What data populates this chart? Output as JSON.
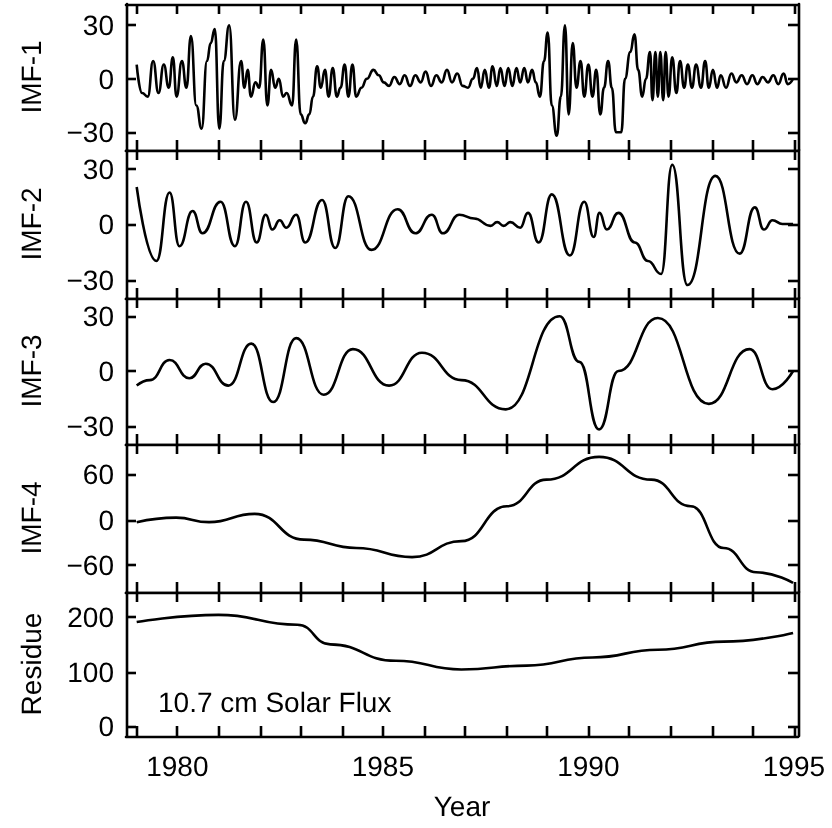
{
  "chart_data": [
    {
      "type": "line",
      "ylabel": "IMF-1",
      "xlim": [
        1978.75,
        1995.1
      ],
      "ylim": [
        -40,
        42
      ],
      "yticks": [
        -30,
        0,
        30
      ],
      "tick_labels": "y",
      "grid": false,
      "xticks": [
        {
          "value": 1979,
          "label": null
        },
        {
          "value": 1980,
          "label": null
        },
        {
          "value": 1981,
          "label": null
        },
        {
          "value": 1982,
          "label": null
        },
        {
          "value": 1983,
          "label": null
        },
        {
          "value": 1984,
          "label": null
        },
        {
          "value": 1985,
          "label": null
        },
        {
          "value": 1986,
          "label": null
        },
        {
          "value": 1987,
          "label": null
        },
        {
          "value": 1988,
          "label": null
        },
        {
          "value": 1989,
          "label": null
        },
        {
          "value": 1990,
          "label": null
        },
        {
          "value": 1991,
          "label": null
        },
        {
          "value": 1992,
          "label": null
        },
        {
          "value": 1993,
          "label": null
        },
        {
          "value": 1994,
          "label": null
        },
        {
          "value": 1995,
          "label": null
        }
      ],
      "series": [
        {
          "color": "#000000",
          "x": [
            1979.01,
            1979.14,
            1979.28,
            1979.41,
            1979.54,
            1979.67,
            1979.79,
            1979.89,
            1979.98,
            1980.11,
            1980.22,
            1980.33,
            1980.46,
            1980.59,
            1980.72,
            1980.81,
            1980.91,
            1981.02,
            1981.13,
            1981.26,
            1981.4,
            1981.55,
            1981.63,
            1981.71,
            1981.79,
            1981.9,
            1981.99,
            1982.09,
            1982.19,
            1982.28,
            1982.38,
            1982.47,
            1982.57,
            1982.66,
            1982.79,
            1982.89,
            1983.0,
            1983.11,
            1983.21,
            1983.3,
            1983.4,
            1983.49,
            1983.59,
            1983.68,
            1983.78,
            1983.88,
            1983.97,
            1984.07,
            1984.16,
            1984.26,
            1984.35,
            1984.48,
            1984.61,
            1984.77,
            1984.9,
            1985.02,
            1985.15,
            1985.28,
            1985.41,
            1985.53,
            1985.66,
            1985.79,
            1985.92,
            1986.04,
            1986.17,
            1986.3,
            1986.43,
            1986.56,
            1986.68,
            1986.81,
            1986.94,
            1987.07,
            1987.19,
            1987.29,
            1987.38,
            1987.48,
            1987.58,
            1987.67,
            1987.77,
            1987.86,
            1987.96,
            1988.05,
            1988.15,
            1988.25,
            1988.34,
            1988.44,
            1988.53,
            1988.63,
            1988.72,
            1988.82,
            1988.92,
            1989.01,
            1989.11,
            1989.23,
            1989.33,
            1989.43,
            1989.52,
            1989.62,
            1989.71,
            1989.81,
            1989.9,
            1990.0,
            1990.1,
            1990.19,
            1990.29,
            1990.38,
            1990.48,
            1990.57,
            1990.67,
            1990.8,
            1990.89,
            1991.02,
            1991.12,
            1991.21,
            1991.31,
            1991.4,
            1991.5,
            1991.56,
            1991.63,
            1991.69,
            1991.75,
            1991.82,
            1991.88,
            1991.95,
            1992.04,
            1992.14,
            1992.23,
            1992.33,
            1992.42,
            1992.52,
            1992.62,
            1992.74,
            1992.84,
            1992.93,
            1993.03,
            1993.13,
            1993.22,
            1993.35,
            1993.48,
            1993.6,
            1993.73,
            1993.86,
            1993.99,
            1994.11,
            1994.24,
            1994.37,
            1994.5,
            1994.62,
            1994.75,
            1994.85,
            1994.98
          ],
          "values": [
            8,
            -8,
            -10,
            10,
            -8,
            8,
            -5,
            12,
            -10,
            10,
            -5,
            24,
            -15,
            -28,
            10,
            20,
            28,
            -28,
            10,
            30,
            -23,
            10,
            -5,
            5,
            -10,
            -2,
            -5,
            22,
            -15,
            5,
            -5,
            0,
            -10,
            -8,
            -15,
            22,
            -20,
            -25,
            -20,
            -10,
            7,
            -5,
            5,
            -10,
            6,
            -10,
            -5,
            8,
            -10,
            8,
            -10,
            -5,
            0,
            5,
            2,
            -2,
            -4,
            1,
            -3,
            2,
            -4,
            2,
            -2,
            4,
            -4,
            2,
            -2,
            5,
            -2,
            3,
            -4,
            -5,
            0,
            6,
            -5,
            5,
            -5,
            7,
            -4,
            6,
            -4,
            6,
            -4,
            6,
            -2,
            6,
            -2,
            5,
            -2,
            -10,
            10,
            26,
            -15,
            -32,
            -10,
            30,
            -20,
            20,
            -5,
            10,
            -10,
            8,
            -10,
            5,
            -20,
            -5,
            10,
            -5,
            -30,
            -30,
            0,
            15,
            25,
            5,
            -10,
            0,
            15,
            -12,
            15,
            -10,
            15,
            -12,
            15,
            -10,
            12,
            -8,
            10,
            -5,
            8,
            -5,
            8,
            -5,
            10,
            -5,
            5,
            -5,
            2,
            -5,
            3,
            -2,
            2,
            -3,
            2,
            -3,
            1,
            -2,
            2,
            -3,
            3,
            -3,
            0
          ]
        }
      ]
    },
    {
      "type": "line",
      "ylabel": "IMF-2",
      "xlim": [
        1978.75,
        1995.1
      ],
      "ylim": [
        -40,
        40
      ],
      "yticks": [
        -30,
        0,
        30
      ],
      "tick_labels": "y",
      "grid": false,
      "xticks": [
        {
          "value": 1979,
          "label": null
        },
        {
          "value": 1980,
          "label": null
        },
        {
          "value": 1981,
          "label": null
        },
        {
          "value": 1982,
          "label": null
        },
        {
          "value": 1983,
          "label": null
        },
        {
          "value": 1984,
          "label": null
        },
        {
          "value": 1985,
          "label": null
        },
        {
          "value": 1986,
          "label": null
        },
        {
          "value": 1987,
          "label": null
        },
        {
          "value": 1988,
          "label": null
        },
        {
          "value": 1989,
          "label": null
        },
        {
          "value": 1990,
          "label": null
        },
        {
          "value": 1991,
          "label": null
        },
        {
          "value": 1992,
          "label": null
        },
        {
          "value": 1993,
          "label": null
        },
        {
          "value": 1994,
          "label": null
        },
        {
          "value": 1995,
          "label": null
        }
      ],
      "series": [
        {
          "color": "#000000",
          "x": [
            1979.01,
            1979.49,
            1979.81,
            1980.05,
            1980.37,
            1980.61,
            1981.05,
            1981.4,
            1981.67,
            1981.93,
            1982.15,
            1982.31,
            1982.49,
            1982.65,
            1982.89,
            1983.11,
            1983.52,
            1983.84,
            1984.16,
            1984.72,
            1985.36,
            1985.79,
            1986.19,
            1986.46,
            1986.86,
            1987.22,
            1987.62,
            1987.78,
            1987.94,
            1988.1,
            1988.34,
            1988.53,
            1988.79,
            1989.11,
            1989.55,
            1989.9,
            1990.13,
            1990.27,
            1990.45,
            1990.73,
            1991.13,
            1991.45,
            1991.77,
            1992.04,
            1992.41,
            1993.09,
            1993.68,
            1994.05,
            1994.27,
            1994.48,
            1994.72,
            1994.98
          ],
          "values": [
            20,
            -20,
            17,
            -12,
            7,
            -5,
            12,
            -12,
            12,
            -10,
            5,
            -3,
            2,
            -2,
            5,
            -10,
            13,
            -13,
            15,
            -14,
            8,
            -5,
            5,
            -5,
            5,
            3,
            -1,
            1,
            -1,
            1,
            -2,
            6,
            -10,
            16,
            -17,
            12,
            -7,
            6,
            -3,
            6,
            -10,
            -20,
            -27,
            32,
            -33,
            26,
            -16,
            9,
            -3,
            2,
            0,
            0
          ]
        }
      ]
    },
    {
      "type": "line",
      "ylabel": "IMF-3",
      "xlim": [
        1978.75,
        1995.1
      ],
      "ylim": [
        -40,
        40
      ],
      "yticks": [
        -30,
        0,
        30
      ],
      "tick_labels": "y",
      "grid": false,
      "xticks": [
        {
          "value": 1979,
          "label": null
        },
        {
          "value": 1980,
          "label": null
        },
        {
          "value": 1981,
          "label": null
        },
        {
          "value": 1982,
          "label": null
        },
        {
          "value": 1983,
          "label": null
        },
        {
          "value": 1984,
          "label": null
        },
        {
          "value": 1985,
          "label": null
        },
        {
          "value": 1986,
          "label": null
        },
        {
          "value": 1987,
          "label": null
        },
        {
          "value": 1988,
          "label": null
        },
        {
          "value": 1989,
          "label": null
        },
        {
          "value": 1990,
          "label": null
        },
        {
          "value": 1991,
          "label": null
        },
        {
          "value": 1992,
          "label": null
        },
        {
          "value": 1993,
          "label": null
        },
        {
          "value": 1994,
          "label": null
        },
        {
          "value": 1995,
          "label": null
        }
      ],
      "series": [
        {
          "color": "#000000",
          "x": [
            1979.01,
            1979.33,
            1979.81,
            1980.29,
            1980.69,
            1981.24,
            1981.8,
            1982.33,
            1982.89,
            1983.56,
            1984.27,
            1985.15,
            1985.95,
            1986.91,
            1987.99,
            1989.3,
            1989.78,
            1990.26,
            1990.73,
            1991.69,
            1992.93,
            1993.92,
            1994.48,
            1994.98
          ],
          "values": [
            -8,
            -5,
            6,
            -4,
            4,
            -8,
            15,
            -17,
            18,
            -13,
            12,
            -8,
            10,
            -5,
            -21,
            30,
            5,
            -32,
            0,
            29,
            -18,
            12,
            -10,
            0
          ]
        }
      ]
    },
    {
      "type": "line",
      "ylabel": "IMF-4",
      "xlim": [
        1978.75,
        1995.1
      ],
      "ylim": [
        -95,
        100
      ],
      "yticks": [
        -60,
        0,
        60
      ],
      "tick_labels": "y",
      "grid": false,
      "xticks": [
        {
          "value": 1979,
          "label": null
        },
        {
          "value": 1980,
          "label": null
        },
        {
          "value": 1981,
          "label": null
        },
        {
          "value": 1982,
          "label": null
        },
        {
          "value": 1983,
          "label": null
        },
        {
          "value": 1984,
          "label": null
        },
        {
          "value": 1985,
          "label": null
        },
        {
          "value": 1986,
          "label": null
        },
        {
          "value": 1987,
          "label": null
        },
        {
          "value": 1988,
          "label": null
        },
        {
          "value": 1989,
          "label": null
        },
        {
          "value": 1990,
          "label": null
        },
        {
          "value": 1991,
          "label": null
        },
        {
          "value": 1992,
          "label": null
        },
        {
          "value": 1993,
          "label": null
        },
        {
          "value": 1994,
          "label": null
        },
        {
          "value": 1995,
          "label": null
        }
      ],
      "series": [
        {
          "color": "#000000",
          "x": [
            1979.01,
            1979.97,
            1980.77,
            1981.88,
            1983.08,
            1984.35,
            1985.71,
            1986.91,
            1988.02,
            1988.98,
            1990.26,
            1991.53,
            1992.49,
            1993.29,
            1994.08,
            1994.98
          ],
          "values": [
            -3,
            3,
            -3,
            8,
            -26,
            -37,
            -49,
            -28,
            18,
            53,
            83,
            53,
            18,
            -37,
            -69,
            -83
          ]
        }
      ]
    },
    {
      "type": "line",
      "ylabel": "Residue",
      "xlabel": "Year",
      "annotations": [
        "10.7 cm Solar Flux"
      ],
      "xlim": [
        1978.75,
        1995.1
      ],
      "ylim": [
        -18,
        246
      ],
      "yticks": [
        0,
        100,
        200
      ],
      "grid": false,
      "xticks": [
        {
          "value": 1979,
          "label": null
        },
        1980,
        {
          "value": 1981,
          "label": null
        },
        {
          "value": 1982,
          "label": null
        },
        {
          "value": 1983,
          "label": null
        },
        {
          "value": 1984,
          "label": null
        },
        1985,
        {
          "value": 1986,
          "label": null
        },
        {
          "value": 1987,
          "label": null
        },
        {
          "value": 1988,
          "label": null
        },
        {
          "value": 1989,
          "label": null
        },
        1990,
        {
          "value": 1991,
          "label": null
        },
        {
          "value": 1992,
          "label": null
        },
        {
          "value": 1993,
          "label": null
        },
        {
          "value": 1994,
          "label": null
        },
        1995
      ],
      "series": [
        {
          "color": "#000000",
          "x": [
            1979.01,
            1981.0,
            1982.92,
            1983.72,
            1985.31,
            1986.91,
            1988.5,
            1990.1,
            1991.69,
            1993.29,
            1994.98
          ],
          "values": [
            191,
            204,
            186,
            150,
            120,
            104,
            111,
            126,
            140,
            155,
            171
          ]
        }
      ]
    }
  ]
}
